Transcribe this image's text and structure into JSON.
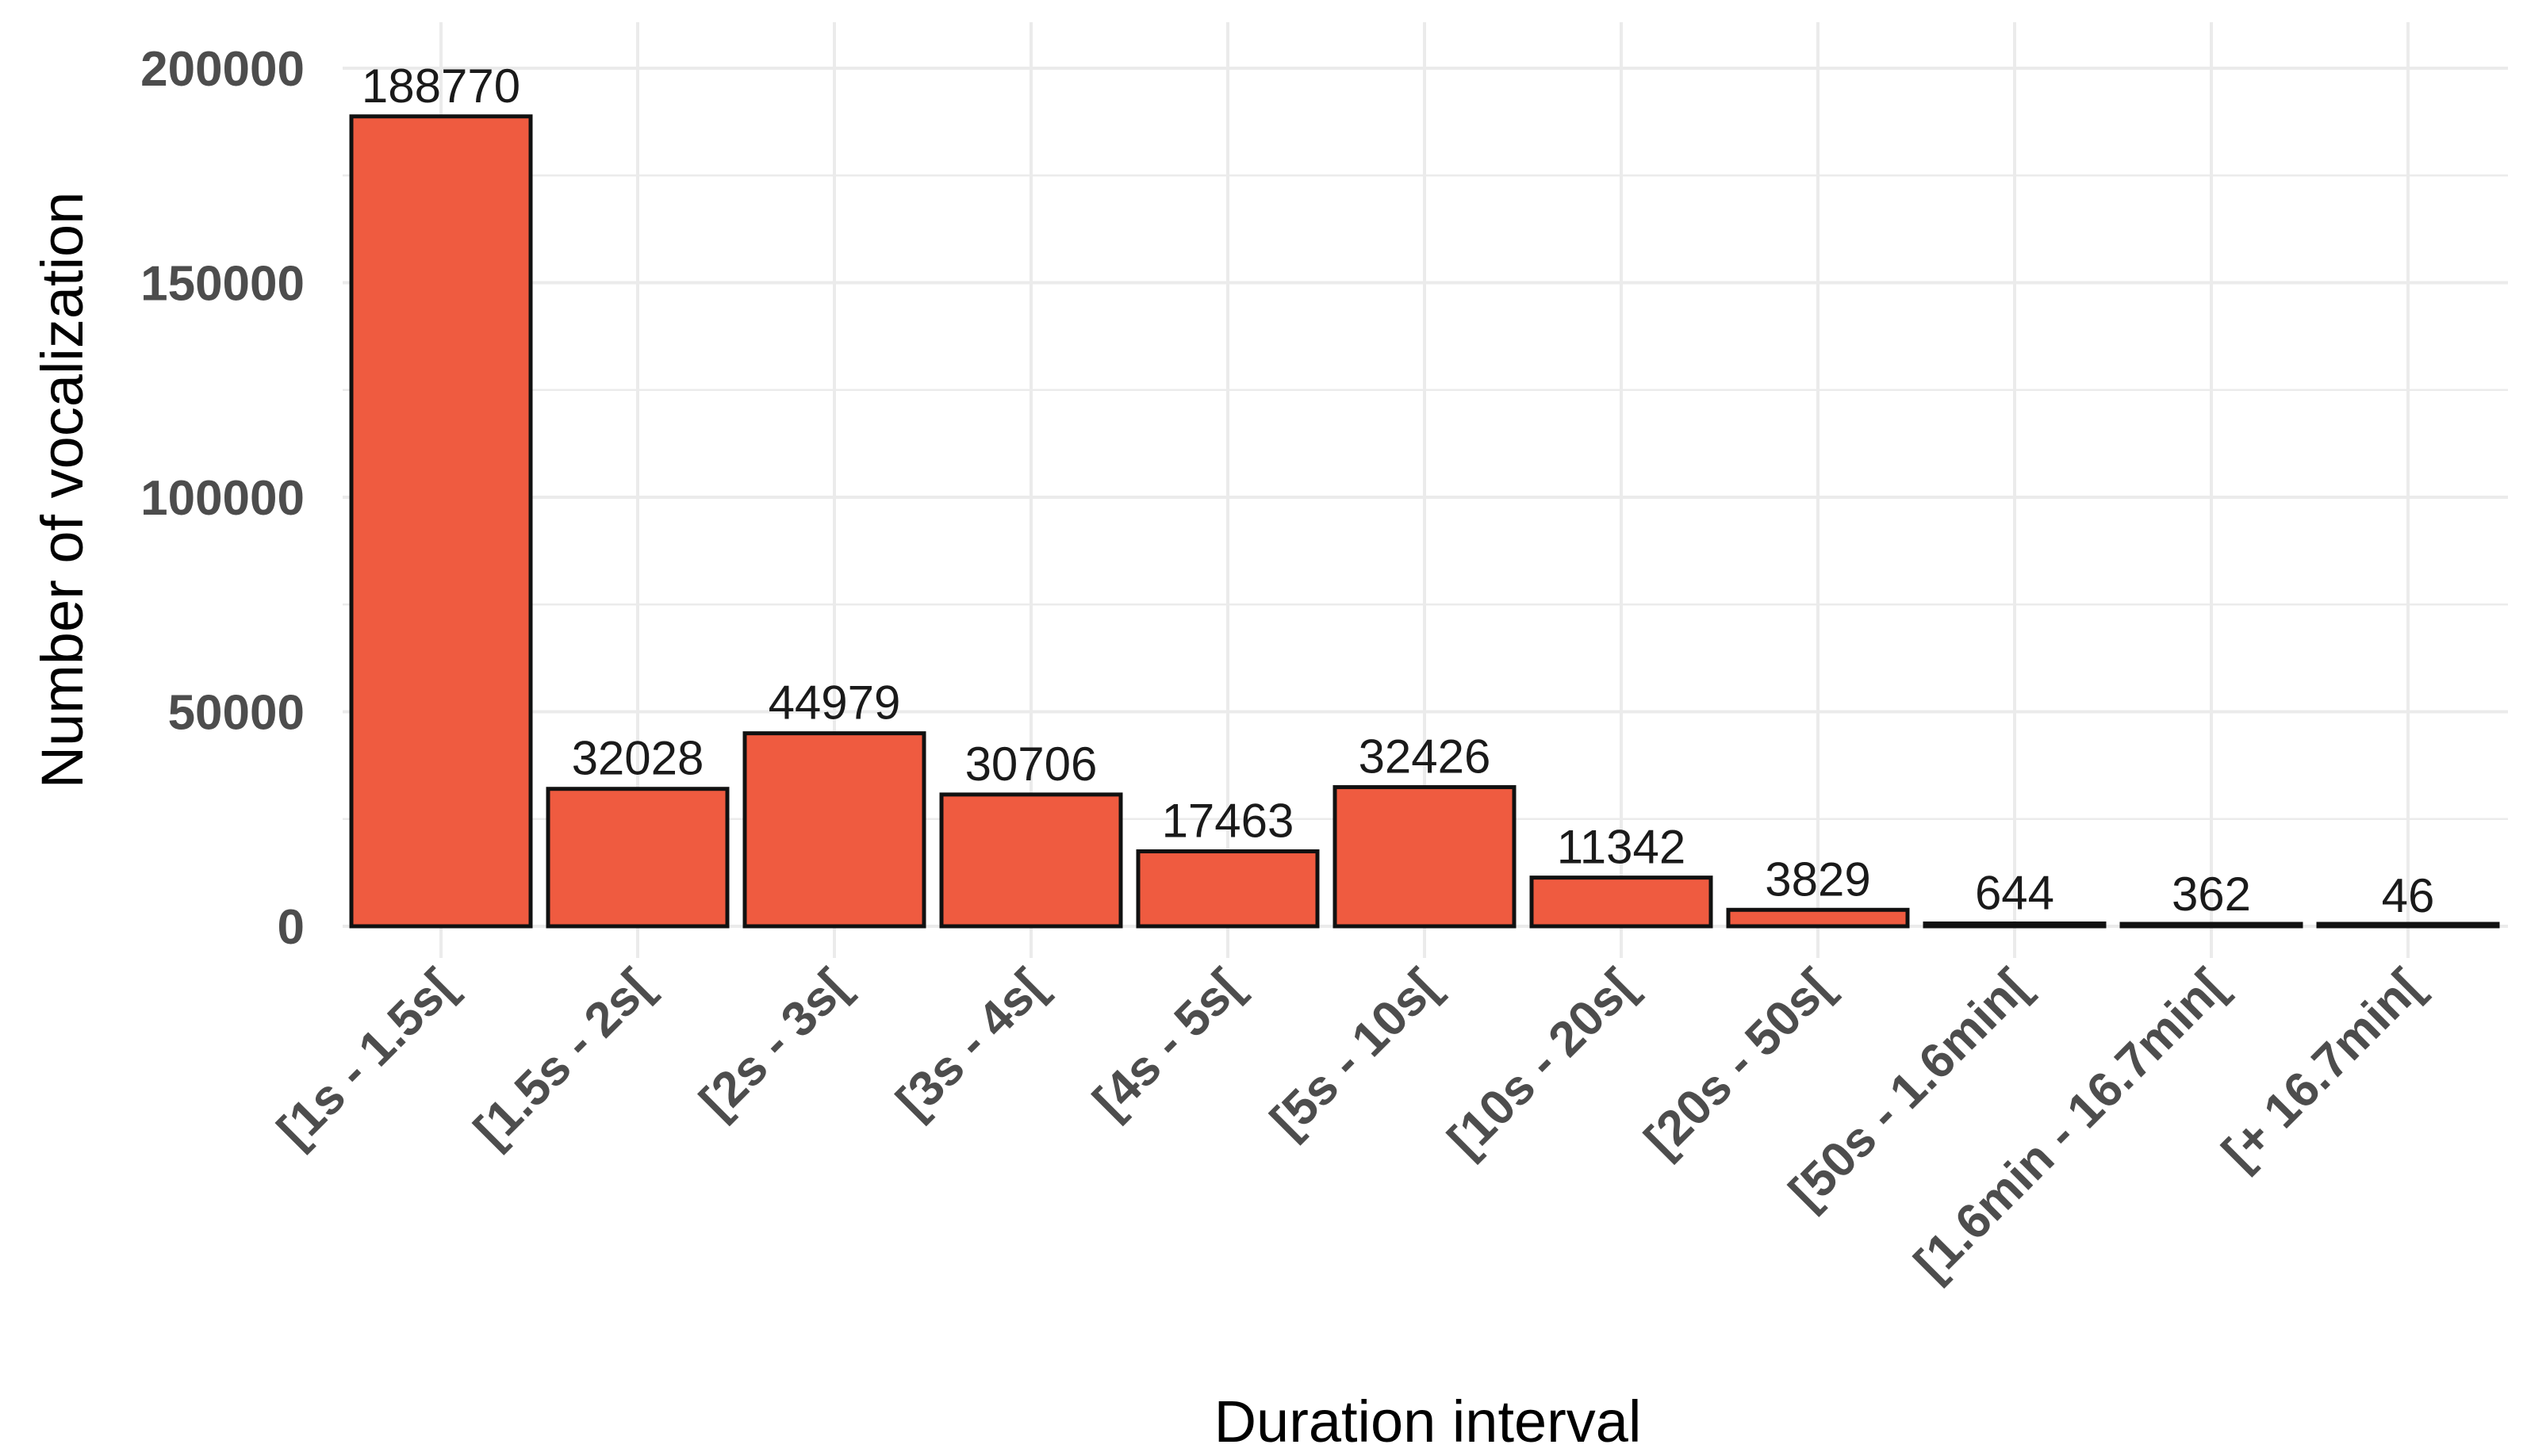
{
  "chart_data": {
    "type": "bar",
    "title": "",
    "xlabel": "Duration interval",
    "ylabel": "Number of vocalization",
    "categories": [
      "[1s - 1.5s[",
      "[1.5s - 2s[",
      "[2s - 3s[",
      "[3s - 4s[",
      "[4s - 5s[",
      "[5s - 10s[",
      "[10s - 20s[",
      "[20s - 50s[",
      "[50s - 1.6min[",
      "[1.6min - 16.7min[",
      "[+ 16.7min["
    ],
    "values": [
      188770,
      32028,
      44979,
      30706,
      17463,
      32426,
      11342,
      3829,
      644,
      362,
      46
    ],
    "data_labels": [
      "188770",
      "32028",
      "44979",
      "30706",
      "17463",
      "32426",
      "11342",
      "3829",
      "644",
      "362",
      "46"
    ],
    "ylim": [
      0,
      200000
    ],
    "yticks": [
      0,
      50000,
      100000,
      150000,
      200000
    ],
    "ytick_labels": [
      "0",
      "50000",
      "100000",
      "150000",
      "200000"
    ],
    "grid": true,
    "legend": "none",
    "colors": {
      "bar_fill": "#ef5b40",
      "bar_stroke": "#111111",
      "grid": "#ebebeb"
    }
  }
}
